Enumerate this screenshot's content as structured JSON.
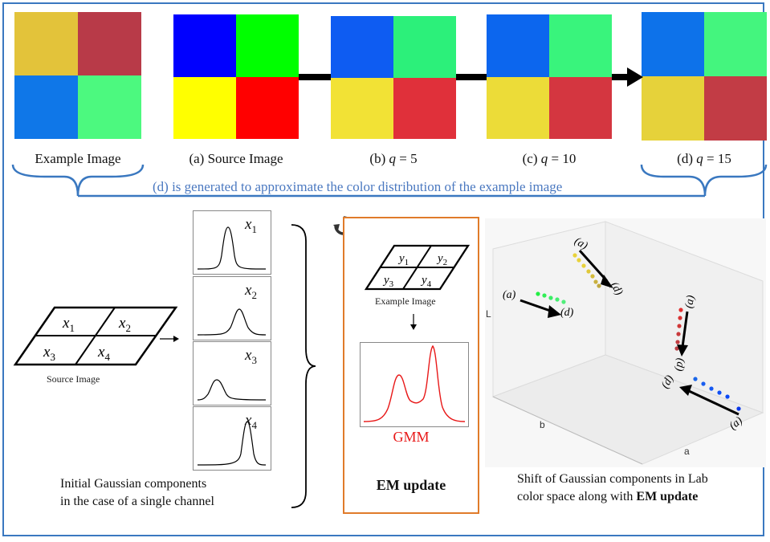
{
  "top_row": {
    "example_caption": "Example Image",
    "source_caption": "(a) Source Image",
    "q5_caption_prefix": "(b) ",
    "q5_caption_var": "q",
    "q5_caption_value": " = 5",
    "q10_caption_prefix": "(c) ",
    "q10_caption_var": "q",
    "q10_caption_value": " = 10",
    "q15_caption_prefix": "(d) ",
    "q15_caption_var": "q",
    "q15_caption_value": " = 15",
    "note": "(d) is generated to approximate the color distribution of the example image"
  },
  "colors": {
    "example": [
      "#e3c33a",
      "#b83a48",
      "#0f77e8",
      "#4cf97f"
    ],
    "source": [
      "#0000ff",
      "#00ff00",
      "#ffff00",
      "#ff0000"
    ],
    "q5": [
      "#0e5cf2",
      "#2cf07a",
      "#f2e235",
      "#e0303a"
    ],
    "q10": [
      "#0c66ee",
      "#39f47c",
      "#ecdc38",
      "#d43640"
    ],
    "q15": [
      "#0d72ea",
      "#44f57e",
      "#e6d23a",
      "#c23c45"
    ],
    "accent_blue": "#3a78c0",
    "em_orange": "#e07b2a",
    "gmm_red": "#e81818"
  },
  "source_grid": {
    "cells": [
      "x",
      "x",
      "x",
      "x"
    ],
    "subs": [
      "1",
      "2",
      "3",
      "4"
    ],
    "caption": "Source Image"
  },
  "gaussians": {
    "labels": [
      "x",
      "x",
      "x",
      "x"
    ],
    "subs": [
      "1",
      "2",
      "3",
      "4"
    ],
    "caption_line1": "Initial Gaussian components",
    "caption_line2": "in the case of a single channel"
  },
  "em": {
    "grid_cells": [
      "y",
      "y",
      "y",
      "y"
    ],
    "grid_subs": [
      "1",
      "2",
      "3",
      "4"
    ],
    "example_caption": "Example Image",
    "gmm_label": "GMM",
    "title": "EM update"
  },
  "lab_plot": {
    "axis_L": "L",
    "axis_b": "b",
    "axis_a": "a",
    "arrow_labels": [
      "(a)",
      "(d)",
      "(a)",
      "(d)",
      "(a)",
      "(d)",
      "(a)",
      "(d)"
    ],
    "caption_line1": "Shift of Gaussian components in Lab",
    "caption_line2_prefix": "color space along with ",
    "caption_line2_bold": "EM update"
  }
}
